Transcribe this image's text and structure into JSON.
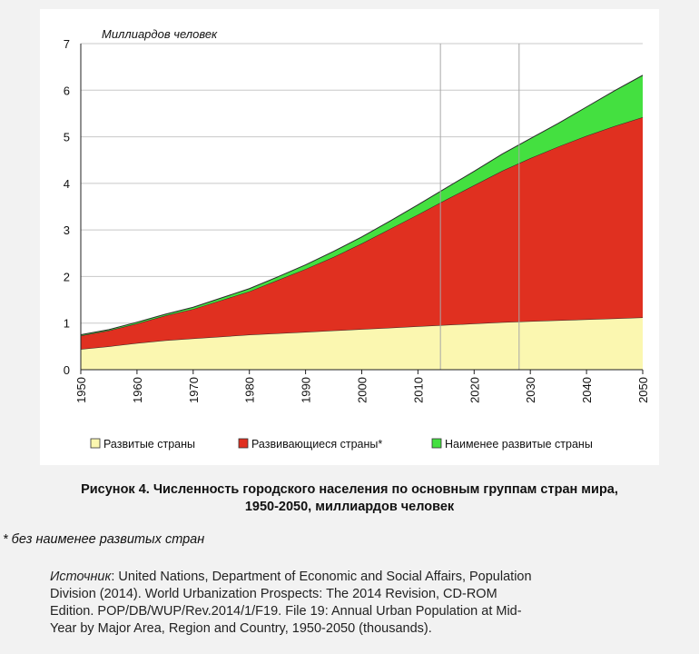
{
  "chart_data": {
    "type": "area",
    "stacked": true,
    "unit_label": "Миллиардов человек",
    "x": [
      1950,
      1955,
      1960,
      1965,
      1970,
      1975,
      1980,
      1985,
      1990,
      1995,
      2000,
      2005,
      2010,
      2015,
      2020,
      2025,
      2030,
      2035,
      2040,
      2045,
      2050
    ],
    "x_ticks": [
      "1950",
      "1960",
      "1970",
      "1980",
      "1990",
      "2000",
      "2010",
      "2020",
      "2030",
      "2040",
      "2050"
    ],
    "y_ticks": [
      "0",
      "1",
      "2",
      "3",
      "4",
      "5",
      "6",
      "7"
    ],
    "ylim": [
      0,
      7
    ],
    "xlim": [
      1950,
      2050
    ],
    "grid": true,
    "vertical_markers": [
      2014,
      2028
    ],
    "legend_position": "bottom",
    "series": [
      {
        "name": "Развитые страны",
        "color": "#fbf7b0",
        "values": [
          0.44,
          0.5,
          0.57,
          0.63,
          0.67,
          0.71,
          0.75,
          0.78,
          0.81,
          0.84,
          0.87,
          0.9,
          0.93,
          0.96,
          0.99,
          1.02,
          1.04,
          1.06,
          1.08,
          1.1,
          1.12
        ]
      },
      {
        "name": "Развивающиеся страны*",
        "color": "#e03020",
        "values": [
          0.29,
          0.34,
          0.42,
          0.53,
          0.63,
          0.78,
          0.93,
          1.14,
          1.35,
          1.58,
          1.84,
          2.12,
          2.4,
          2.69,
          2.97,
          3.25,
          3.5,
          3.73,
          3.94,
          4.13,
          4.3
        ]
      },
      {
        "name": "Наименее развитые страны",
        "color": "#44e040",
        "values": [
          0.02,
          0.02,
          0.03,
          0.03,
          0.04,
          0.05,
          0.06,
          0.07,
          0.09,
          0.12,
          0.14,
          0.17,
          0.21,
          0.25,
          0.3,
          0.36,
          0.42,
          0.5,
          0.62,
          0.76,
          0.9
        ]
      }
    ]
  },
  "caption": {
    "line1": "Рисунок 4. Численность городского населения по основным группам стран мира,",
    "line2": "1950-2050, миллиардов человек"
  },
  "footnote": "* без наименее развитых стран",
  "source": {
    "label": "Источник",
    "line1": ": United Nations, Department of Economic and Social Affairs, Population",
    "line2": "Division (2014). World Urbanization Prospects: The 2014 Revision, CD-ROM",
    "line3": "Edition. POP/DB/WUP/Rev.2014/1/F19. File 19: Annual Urban Population at Mid-",
    "line4": "Year by Major Area, Region and Country, 1950-2050 (thousands)."
  }
}
